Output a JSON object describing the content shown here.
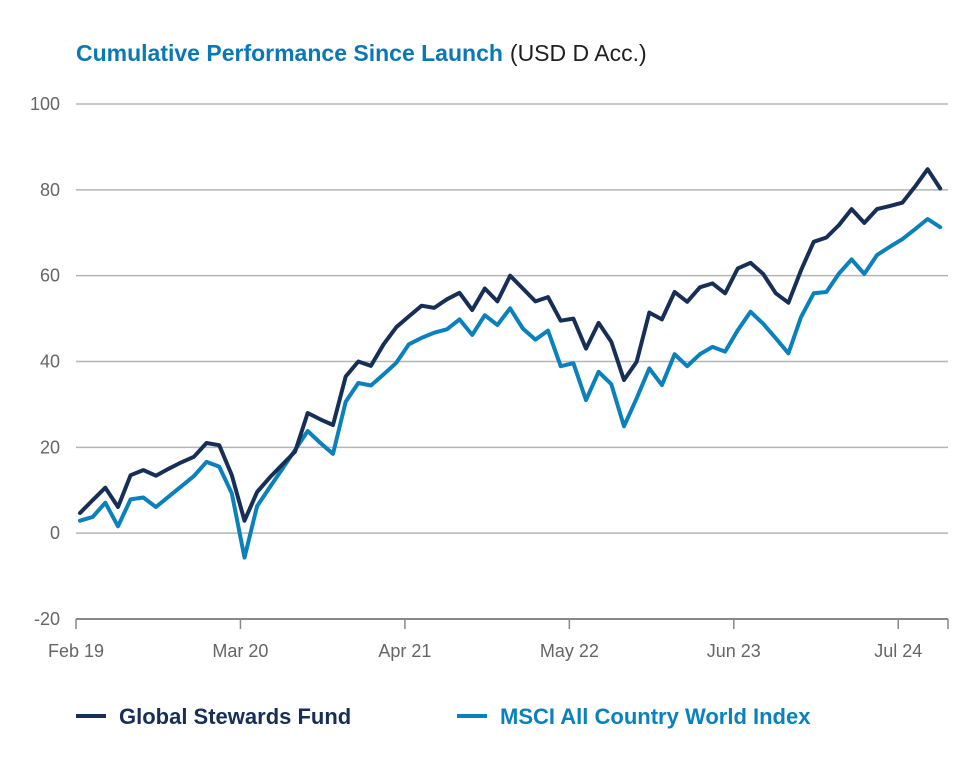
{
  "chart_data": {
    "type": "line",
    "title": "Cumulative Performance Since Launch",
    "subtitle": "(USD D Acc.)",
    "xlabel": "",
    "ylabel": "",
    "ylim": [
      -20,
      100
    ],
    "yticks": [
      "100",
      "80",
      "60",
      "40",
      "20",
      "0",
      "-20"
    ],
    "ytick_values": [
      100,
      80,
      60,
      40,
      20,
      0,
      -20
    ],
    "xticks": [
      {
        "label": "Feb 19",
        "date": "2019-02"
      },
      {
        "label": "Mar 20",
        "date": "2020-03"
      },
      {
        "label": "Apr 21",
        "date": "2021-04"
      },
      {
        "label": "May 22",
        "date": "2022-05"
      },
      {
        "label": "Jun 23",
        "date": "2023-06"
      },
      {
        "label": "Jul 24",
        "date": "2024-07"
      }
    ],
    "grid": true,
    "legend_position": "bottom",
    "x": [
      "2019-02",
      "2019-03",
      "2019-04",
      "2019-05",
      "2019-06",
      "2019-07",
      "2019-08",
      "2019-09",
      "2019-10",
      "2019-11",
      "2019-12",
      "2020-01",
      "2020-02",
      "2020-03",
      "2020-04",
      "2020-05",
      "2020-06",
      "2020-07",
      "2020-08",
      "2020-09",
      "2020-10",
      "2020-11",
      "2020-12",
      "2021-01",
      "2021-02",
      "2021-03",
      "2021-04",
      "2021-05",
      "2021-06",
      "2021-07",
      "2021-08",
      "2021-09",
      "2021-10",
      "2021-11",
      "2021-12",
      "2022-01",
      "2022-02",
      "2022-03",
      "2022-04",
      "2022-05",
      "2022-06",
      "2022-07",
      "2022-08",
      "2022-09",
      "2022-10",
      "2022-11",
      "2022-12",
      "2023-01",
      "2023-02",
      "2023-03",
      "2023-04",
      "2023-05",
      "2023-06",
      "2023-07",
      "2023-08",
      "2023-09",
      "2023-10",
      "2023-11",
      "2023-12",
      "2024-01",
      "2024-02",
      "2024-03",
      "2024-04",
      "2024-05",
      "2024-06",
      "2024-07",
      "2024-08",
      "2024-09",
      "2024-10"
    ],
    "series": [
      {
        "name": "Global Stewards Fund",
        "color": "#172f57",
        "values": [
          4.7,
          7.7,
          10.6,
          6.1,
          13.5,
          14.7,
          13.4,
          15,
          16.5,
          17.8,
          21,
          20.5,
          13.5,
          2.9,
          9.6,
          13,
          16,
          19,
          28,
          26.5,
          25.2,
          36.5,
          40,
          39,
          44,
          48,
          50.5,
          53,
          52.5,
          54.5,
          56,
          52,
          57,
          54,
          60,
          57,
          54,
          55,
          49.5,
          50,
          43,
          49,
          44.6,
          35.7,
          39.9,
          51.4,
          49.8,
          56.2,
          53.9,
          57.3,
          58.2,
          55.9,
          61.7,
          63,
          60.4,
          55.9,
          53.7,
          61.3,
          67.9,
          68.9,
          71.8,
          75.5,
          72.3,
          75.5,
          76.2,
          77,
          80.7,
          84.8,
          80.3
        ]
      },
      {
        "name": "MSCI All Country World Index",
        "color": "#0a80bc",
        "values": [
          2.9,
          3.8,
          7.1,
          1.6,
          7.9,
          8.3,
          6.1,
          8.5,
          10.9,
          13.3,
          16.6,
          15.5,
          9.3,
          -5.7,
          6.3,
          10.7,
          15,
          19.4,
          23.8,
          21,
          18.5,
          30.6,
          35,
          34.4,
          37,
          39.7,
          44,
          45.5,
          46.7,
          47.5,
          49.8,
          46.2,
          50.8,
          48.5,
          52.4,
          47.7,
          45.1,
          47.2,
          38.9,
          39.6,
          31,
          37.6,
          34.7,
          24.9,
          31.4,
          38.4,
          34.5,
          41.7,
          38.9,
          41.7,
          43.4,
          42.3,
          47.3,
          51.6,
          48.8,
          45.4,
          41.9,
          50.4,
          55.9,
          56.2,
          60.5,
          63.8,
          60.4,
          64.8,
          66.7,
          68.5,
          70.8,
          73.2,
          71.3
        ]
      }
    ]
  }
}
